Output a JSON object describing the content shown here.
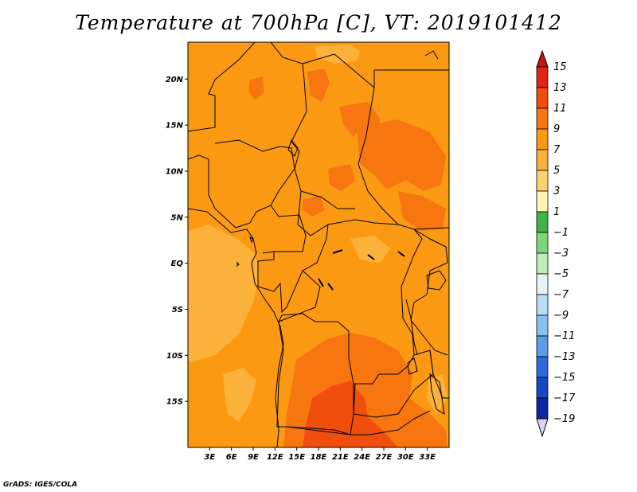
{
  "title": "Temperature at 700hPa [C], VT: 2019101412",
  "credit": "GrADS: IGES/COLA",
  "map": {
    "variable": "Temperature at 700hPa",
    "units": "C",
    "valid_time": "2019101412",
    "lon_range": [
      0,
      36
    ],
    "lat_range": [
      -20,
      24
    ],
    "lat_ticks": [
      {
        "value": 20,
        "label": "20N"
      },
      {
        "value": 15,
        "label": "15N"
      },
      {
        "value": 10,
        "label": "10N"
      },
      {
        "value": 5,
        "label": "5N"
      },
      {
        "value": 0,
        "label": "EQ"
      },
      {
        "value": -5,
        "label": "5S"
      },
      {
        "value": -10,
        "label": "10S"
      },
      {
        "value": -15,
        "label": "15S"
      }
    ],
    "lon_ticks": [
      {
        "value": 3,
        "label": "3E"
      },
      {
        "value": 6,
        "label": "6E"
      },
      {
        "value": 9,
        "label": "9E"
      },
      {
        "value": 12,
        "label": "12E"
      },
      {
        "value": 15,
        "label": "15E"
      },
      {
        "value": 18,
        "label": "18E"
      },
      {
        "value": 21,
        "label": "21E"
      },
      {
        "value": 24,
        "label": "24E"
      },
      {
        "value": 27,
        "label": "27E"
      },
      {
        "value": 30,
        "label": "30E"
      },
      {
        "value": 33,
        "label": "33E"
      }
    ]
  },
  "colorbar": {
    "levels": [
      "15",
      "13",
      "11",
      "9",
      "7",
      "5",
      "3",
      "1",
      "−1",
      "−3",
      "−5",
      "−7",
      "−9",
      "−11",
      "−13",
      "−15",
      "−17",
      "−19"
    ],
    "colors": [
      "#e02414",
      "#f04e0c",
      "#f7760f",
      "#fb9a12",
      "#fcb13a",
      "#fcd16e",
      "#fef3b1",
      "#41b346",
      "#7fd67a",
      "#bdecb9",
      "#e3f4f8",
      "#b6dff7",
      "#86c1ef",
      "#5c9ce8",
      "#2e6bd9",
      "#1747c4",
      "#0c28a0",
      "#060c78"
    ],
    "cap_top_color": "#c8140c",
    "cap_bottom_color": "#d6d6f2"
  }
}
